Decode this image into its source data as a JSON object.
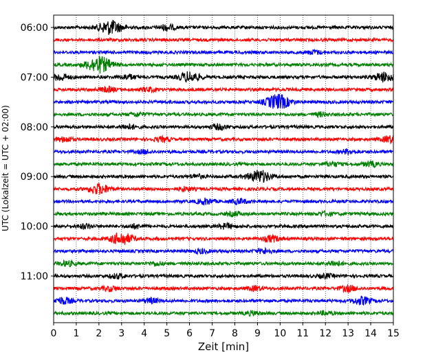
{
  "chart_data": {
    "type": "line",
    "xlabel": "Zeit  [min]",
    "ylabel": "UTC (Lokalzeit = UTC + 02:00)",
    "xlim": [
      0,
      15
    ],
    "x_ticks": [
      "0",
      "1",
      "2",
      "3",
      "4",
      "5",
      "6",
      "7",
      "8",
      "9",
      "10",
      "11",
      "12",
      "13",
      "14",
      "15"
    ],
    "y_ticks": [
      "06:00",
      "07:00",
      "08:00",
      "09:00",
      "10:00",
      "11:00"
    ],
    "grid": "x-dotted",
    "trace_colors": [
      "#000000",
      "#ff0000",
      "#0000ff",
      "#008000"
    ],
    "traces": [
      {
        "start": "06:00",
        "events": [
          [
            2.5,
            3.0
          ],
          [
            5.0,
            1.2
          ]
        ]
      },
      {
        "start": "06:15",
        "events": []
      },
      {
        "start": "06:30",
        "events": [
          [
            11.5,
            0.8
          ]
        ]
      },
      {
        "start": "06:45",
        "events": [
          [
            2.0,
            3.5
          ]
        ]
      },
      {
        "start": "07:00",
        "events": [
          [
            0.3,
            1.4
          ],
          [
            3.3,
            1.0
          ],
          [
            6.0,
            2.2
          ],
          [
            14.6,
            2.0
          ]
        ]
      },
      {
        "start": "07:15",
        "events": [
          [
            2.4,
            1.0
          ],
          [
            4.2,
            0.8
          ]
        ]
      },
      {
        "start": "07:30",
        "events": [
          [
            9.9,
            3.2
          ]
        ]
      },
      {
        "start": "07:45",
        "events": [
          [
            3.7,
            0.8
          ],
          [
            11.8,
            0.8
          ]
        ]
      },
      {
        "start": "08:00",
        "events": [
          [
            3.3,
            1.0
          ],
          [
            7.3,
            1.0
          ]
        ]
      },
      {
        "start": "08:15",
        "events": [
          [
            0.5,
            1.0
          ],
          [
            4.8,
            0.9
          ],
          [
            14.9,
            1.5
          ]
        ]
      },
      {
        "start": "08:30",
        "events": [
          [
            4.0,
            0.7
          ],
          [
            13.0,
            0.9
          ]
        ]
      },
      {
        "start": "08:45",
        "events": [
          [
            12.3,
            0.9
          ],
          [
            14.0,
            1.0
          ]
        ]
      },
      {
        "start": "09:00",
        "events": [
          [
            9.1,
            2.6
          ],
          [
            6.3,
            0.8
          ]
        ]
      },
      {
        "start": "09:15",
        "events": [
          [
            2.0,
            2.2
          ],
          [
            5.8,
            0.8
          ]
        ]
      },
      {
        "start": "09:30",
        "events": [
          [
            6.7,
            1.2
          ],
          [
            8.2,
            1.0
          ]
        ]
      },
      {
        "start": "09:45",
        "events": [
          [
            8.0,
            0.8
          ],
          [
            12.0,
            0.8
          ]
        ]
      },
      {
        "start": "10:00",
        "events": [
          [
            1.4,
            0.9
          ],
          [
            7.6,
            1.0
          ],
          [
            3.6,
            0.8
          ]
        ]
      },
      {
        "start": "10:15",
        "events": [
          [
            3.0,
            2.6
          ],
          [
            9.6,
            1.3
          ]
        ]
      },
      {
        "start": "10:30",
        "events": [
          [
            9.3,
            1.0
          ],
          [
            6.5,
            0.8
          ]
        ]
      },
      {
        "start": "10:45",
        "events": [
          [
            0.6,
            1.0
          ],
          [
            4.5,
            0.8
          ],
          [
            12.4,
            1.0
          ]
        ]
      },
      {
        "start": "11:00",
        "events": [
          [
            2.8,
            0.9
          ],
          [
            12.0,
            0.8
          ]
        ]
      },
      {
        "start": "11:15",
        "events": [
          [
            2.5,
            1.0
          ],
          [
            8.9,
            0.9
          ],
          [
            13.0,
            1.2
          ]
        ]
      },
      {
        "start": "11:30",
        "events": [
          [
            0.4,
            1.4
          ],
          [
            4.3,
            1.0
          ],
          [
            13.6,
            1.6
          ]
        ]
      },
      {
        "start": "11:45",
        "events": [
          [
            8.8,
            0.8
          ],
          [
            12.0,
            0.7
          ]
        ]
      }
    ]
  }
}
